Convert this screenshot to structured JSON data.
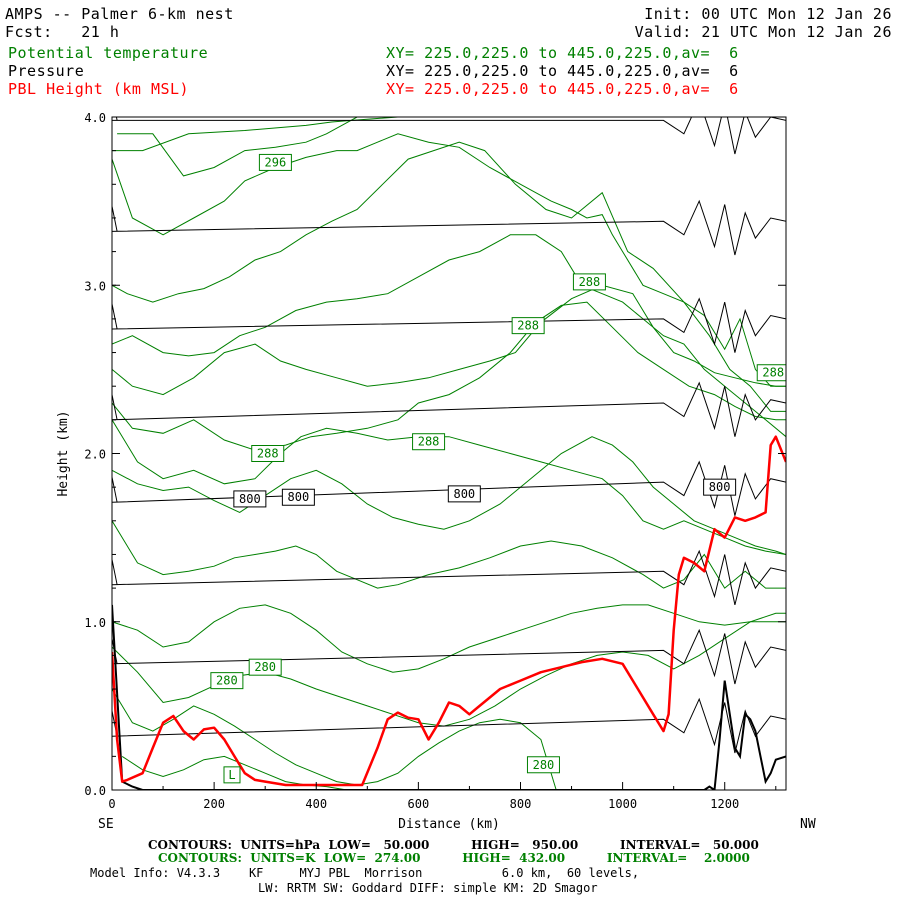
{
  "header": {
    "title": "AMPS -- Palmer 6-km nest",
    "fcst": "Fcst:   21 h",
    "init": "Init: 00 UTC Mon 12 Jan 26",
    "valid": "Valid: 21 UTC Mon 12 Jan 26",
    "fields": [
      {
        "name": "Potential temperature",
        "xy": "XY= 225.0,225.0 to 445.0,225.0,av=  6",
        "color": "#008000"
      },
      {
        "name": "Pressure",
        "xy": "XY= 225.0,225.0 to 445.0,225.0,av=  6",
        "color": "#000000"
      },
      {
        "name": "PBL Height (km MSL)",
        "xy": "XY= 225.0,225.0 to 445.0,225.0,av=  6",
        "color": "#ff0000"
      }
    ]
  },
  "chart_data": {
    "type": "line",
    "xlabel": "Distance (km)",
    "ylabel": "Height (km)",
    "xlim": [
      0,
      1320
    ],
    "ylim": [
      0,
      4.0
    ],
    "xticks": [
      0,
      200,
      400,
      600,
      800,
      1000,
      1200
    ],
    "yticks": [
      0.0,
      1.0,
      2.0,
      3.0,
      4.0
    ],
    "xtick_labels": [
      "0",
      "200",
      "400",
      "600",
      "800",
      "1000",
      "1200"
    ],
    "ytick_labels": [
      "0.0",
      "1.0",
      "2.0",
      "3.0",
      "4.0"
    ],
    "left_end_label": "SE",
    "right_end_label": "NW",
    "pbl_height": {
      "name": "PBL Height (km MSL)",
      "color": "#ff0000",
      "x": [
        0,
        10,
        20,
        30,
        60,
        80,
        100,
        120,
        140,
        160,
        180,
        200,
        220,
        240,
        260,
        280,
        300,
        340,
        400,
        460,
        490,
        520,
        540,
        560,
        580,
        600,
        620,
        640,
        660,
        680,
        700,
        720,
        760,
        800,
        840,
        880,
        920,
        960,
        1000,
        1030,
        1060,
        1080,
        1090,
        1100,
        1110,
        1120,
        1140,
        1160,
        1180,
        1200,
        1220,
        1240,
        1260,
        1280,
        1290,
        1300,
        1320
      ],
      "y": [
        0.82,
        0.3,
        0.05,
        0.06,
        0.1,
        0.25,
        0.4,
        0.44,
        0.35,
        0.3,
        0.36,
        0.37,
        0.3,
        0.2,
        0.1,
        0.06,
        0.05,
        0.03,
        0.03,
        0.03,
        0.03,
        0.25,
        0.42,
        0.46,
        0.43,
        0.42,
        0.3,
        0.4,
        0.52,
        0.5,
        0.45,
        0.5,
        0.6,
        0.65,
        0.7,
        0.73,
        0.76,
        0.78,
        0.75,
        0.6,
        0.45,
        0.35,
        0.45,
        0.95,
        1.28,
        1.38,
        1.35,
        1.3,
        1.55,
        1.5,
        1.62,
        1.6,
        1.62,
        1.65,
        2.05,
        2.1,
        1.95
      ]
    },
    "pressure_contours": {
      "name": "Pressure",
      "units": "hPa",
      "color": "#000000",
      "levels": [
        {
          "y": [
            3.98,
            3.98
          ]
        },
        {
          "y": [
            3.32,
            3.38
          ]
        },
        {
          "y": [
            2.74,
            2.8
          ]
        },
        {
          "y": [
            2.2,
            2.3
          ]
        },
        {
          "y": [
            1.71,
            1.83
          ]
        },
        {
          "y": [
            1.22,
            1.3
          ]
        },
        {
          "y": [
            0.75,
            0.83
          ]
        },
        {
          "y": [
            0.32,
            0.42
          ]
        }
      ],
      "labels": [
        {
          "text": "800",
          "x": 270,
          "y": 1.73
        },
        {
          "text": "800",
          "x": 365,
          "y": 1.74
        },
        {
          "text": "800",
          "x": 690,
          "y": 1.76
        },
        {
          "text": "800",
          "x": 1190,
          "y": 1.8
        }
      ]
    },
    "theta_contours": {
      "name": "Potential temperature",
      "units": "K",
      "color": "#008000",
      "lines": [
        {
          "x": [
            0,
            60,
            150,
            260,
            380,
            430,
            470,
            560,
            650,
            700,
            780,
            820
          ],
          "y": [
            3.8,
            3.8,
            3.9,
            3.92,
            3.95,
            3.97,
            3.98,
            4.0,
            4.0,
            4.0,
            4.0,
            4.0
          ]
        },
        {
          "x": [
            10,
            80,
            140,
            200,
            260,
            320,
            380,
            420,
            450,
            480,
            520,
            560,
            600,
            650,
            700,
            760,
            800
          ],
          "y": [
            3.9,
            3.9,
            3.65,
            3.7,
            3.8,
            3.82,
            3.85,
            3.9,
            3.95,
            4.0,
            4.0,
            4.0,
            4.0,
            4.0,
            4.0,
            4.0,
            4.0
          ]
        },
        {
          "x": [
            0,
            40,
            100,
            160,
            220,
            260,
            320,
            380,
            440,
            480,
            520,
            560,
            620,
            680,
            740,
            800,
            860,
            900,
            930,
            960,
            980,
            1000,
            1040,
            1080,
            1120,
            1160,
            1200,
            1230,
            1260,
            1290,
            1320
          ],
          "y": [
            3.75,
            3.4,
            3.3,
            3.4,
            3.5,
            3.62,
            3.7,
            3.76,
            3.8,
            3.8,
            3.85,
            3.9,
            3.85,
            3.82,
            3.7,
            3.6,
            3.5,
            3.45,
            3.4,
            3.42,
            3.3,
            3.2,
            3.0,
            2.95,
            2.9,
            2.82,
            2.62,
            2.8,
            2.5,
            2.4,
            2.4
          ]
        },
        {
          "x": [
            0,
            30,
            80,
            130,
            180,
            230,
            280,
            330,
            380,
            430,
            480,
            530,
            580,
            630,
            680,
            730,
            790,
            850,
            900,
            960,
            1010,
            1060,
            1120,
            1170,
            1210,
            1250,
            1290,
            1320
          ],
          "y": [
            3.0,
            2.95,
            2.9,
            2.95,
            2.98,
            3.05,
            3.15,
            3.2,
            3.3,
            3.38,
            3.45,
            3.6,
            3.75,
            3.8,
            3.85,
            3.8,
            3.6,
            3.45,
            3.4,
            3.55,
            3.2,
            3.1,
            2.9,
            2.7,
            2.5,
            2.4,
            2.25,
            2.25
          ]
        },
        {
          "x": [
            0,
            40,
            100,
            150,
            200,
            250,
            300,
            360,
            420,
            480,
            540,
            600,
            660,
            720,
            780,
            830,
            880,
            920,
            960,
            1000,
            1040,
            1080,
            1120,
            1160,
            1200,
            1240,
            1280,
            1320
          ],
          "y": [
            2.65,
            2.7,
            2.6,
            2.58,
            2.6,
            2.7,
            2.75,
            2.85,
            2.9,
            2.92,
            2.95,
            3.05,
            3.15,
            3.2,
            3.3,
            3.3,
            3.2,
            3.0,
            2.95,
            2.9,
            2.8,
            2.7,
            2.65,
            2.5,
            2.4,
            2.3,
            2.2,
            2.1
          ]
        },
        {
          "x": [
            0,
            40,
            100,
            160,
            220,
            280,
            330,
            380,
            440,
            500,
            560,
            620,
            680,
            740,
            790,
            840,
            900,
            960,
            1020,
            1060,
            1100,
            1140,
            1180,
            1220,
            1260,
            1300,
            1320
          ],
          "y": [
            2.5,
            2.4,
            2.35,
            2.45,
            2.6,
            2.65,
            2.55,
            2.5,
            2.45,
            2.4,
            2.42,
            2.45,
            2.5,
            2.55,
            2.6,
            2.78,
            2.92,
            3.0,
            2.95,
            2.75,
            2.6,
            2.55,
            2.48,
            2.45,
            2.42,
            2.4,
            2.4
          ]
        },
        {
          "x": [
            0,
            40,
            100,
            160,
            220,
            280,
            340,
            390,
            440,
            500,
            560,
            600,
            660,
            720,
            780,
            830,
            880,
            930,
            980,
            1030,
            1080,
            1130,
            1180,
            1220,
            1260,
            1300,
            1320
          ],
          "y": [
            2.3,
            2.15,
            2.12,
            2.2,
            2.08,
            2.02,
            2.05,
            2.1,
            2.12,
            2.15,
            2.2,
            2.3,
            2.35,
            2.45,
            2.6,
            2.78,
            2.88,
            2.9,
            2.75,
            2.6,
            2.5,
            2.4,
            2.35,
            2.28,
            2.22,
            2.2,
            2.2
          ]
        },
        {
          "x": [
            0,
            50,
            100,
            160,
            220,
            280,
            330,
            370,
            420,
            480,
            540,
            600,
            660,
            720,
            780,
            840,
            900,
            960,
            1000,
            1040,
            1080,
            1120,
            1160,
            1200,
            1240,
            1280,
            1320
          ],
          "y": [
            2.2,
            1.95,
            1.85,
            1.9,
            1.82,
            1.85,
            2.0,
            2.1,
            2.15,
            2.12,
            2.08,
            2.1,
            2.1,
            2.05,
            2.0,
            1.95,
            1.9,
            1.85,
            1.75,
            1.6,
            1.55,
            1.6,
            1.55,
            1.5,
            1.45,
            1.42,
            1.4
          ]
        },
        {
          "x": [
            0,
            50,
            100,
            150,
            200,
            250,
            300,
            350,
            400,
            450,
            500,
            550,
            600,
            650,
            700,
            760,
            820,
            880,
            940,
            980,
            1020,
            1060,
            1100,
            1140,
            1180,
            1220,
            1260,
            1300,
            1320
          ],
          "y": [
            1.9,
            1.82,
            1.78,
            1.8,
            1.72,
            1.65,
            1.75,
            1.85,
            1.9,
            1.82,
            1.7,
            1.62,
            1.58,
            1.55,
            1.6,
            1.7,
            1.85,
            2.0,
            2.1,
            2.05,
            1.95,
            1.8,
            1.7,
            1.6,
            1.55,
            1.5,
            1.45,
            1.42,
            1.4
          ]
        },
        {
          "x": [
            0,
            50,
            100,
            150,
            200,
            240,
            280,
            320,
            360,
            400,
            440,
            480,
            520,
            560,
            620,
            680,
            740,
            800,
            860,
            920,
            980,
            1040,
            1080,
            1120,
            1160,
            1200,
            1240,
            1280,
            1320
          ],
          "y": [
            1.6,
            1.35,
            1.28,
            1.3,
            1.33,
            1.38,
            1.4,
            1.42,
            1.45,
            1.4,
            1.3,
            1.25,
            1.2,
            1.22,
            1.28,
            1.32,
            1.38,
            1.45,
            1.48,
            1.45,
            1.38,
            1.28,
            1.2,
            1.25,
            1.4,
            1.2,
            1.3,
            1.2,
            1.2
          ]
        },
        {
          "x": [
            0,
            50,
            100,
            150,
            200,
            250,
            300,
            350,
            400,
            450,
            500,
            550,
            600,
            650,
            700,
            750,
            800,
            850,
            900,
            950,
            1000,
            1050,
            1100,
            1150,
            1200,
            1250,
            1300,
            1320
          ],
          "y": [
            1.0,
            0.95,
            0.85,
            0.88,
            1.0,
            1.08,
            1.1,
            1.05,
            0.95,
            0.82,
            0.75,
            0.7,
            0.72,
            0.78,
            0.85,
            0.9,
            0.95,
            1.0,
            1.05,
            1.08,
            1.1,
            1.1,
            1.05,
            1.0,
            0.98,
            1.0,
            1.0,
            1.0
          ]
        },
        {
          "x": [
            0,
            50,
            100,
            150,
            200,
            250,
            300,
            350,
            400,
            450,
            500,
            550,
            600,
            650,
            700,
            750,
            800,
            850,
            900,
            950,
            1000,
            1050,
            1100,
            1150,
            1200,
            1250,
            1300,
            1320
          ],
          "y": [
            0.85,
            0.7,
            0.52,
            0.55,
            0.62,
            0.68,
            0.7,
            0.66,
            0.6,
            0.55,
            0.5,
            0.45,
            0.4,
            0.38,
            0.42,
            0.5,
            0.6,
            0.68,
            0.75,
            0.8,
            0.82,
            0.8,
            0.72,
            0.8,
            0.9,
            1.0,
            1.05,
            1.05
          ]
        },
        {
          "x": [
            0,
            40,
            80,
            120,
            160,
            200,
            240,
            280,
            320,
            360,
            400,
            440,
            480,
            520,
            560,
            600,
            640,
            680,
            720,
            760,
            800,
            840,
            870
          ],
          "y": [
            0.6,
            0.4,
            0.35,
            0.42,
            0.5,
            0.45,
            0.38,
            0.3,
            0.22,
            0.15,
            0.1,
            0.05,
            0.03,
            0.05,
            0.1,
            0.2,
            0.28,
            0.35,
            0.4,
            0.42,
            0.4,
            0.3,
            0.0
          ]
        },
        {
          "x": [
            20,
            60,
            100,
            140,
            180,
            220,
            260,
            300,
            340,
            380,
            420,
            460
          ],
          "y": [
            0.2,
            0.12,
            0.08,
            0.12,
            0.18,
            0.2,
            0.15,
            0.1,
            0.05,
            0.03,
            0.02,
            0.0
          ]
        }
      ],
      "labels": [
        {
          "text": "296",
          "x": 320,
          "y": 3.73
        },
        {
          "text": "288",
          "x": 935,
          "y": 3.02
        },
        {
          "text": "288",
          "x": 815,
          "y": 2.76
        },
        {
          "text": "288",
          "x": 1295,
          "y": 2.48
        },
        {
          "text": "288",
          "x": 620,
          "y": 2.07
        },
        {
          "text": "288",
          "x": 305,
          "y": 2.0
        },
        {
          "text": "280",
          "x": 300,
          "y": 0.73
        },
        {
          "text": "280",
          "x": 225,
          "y": 0.65
        },
        {
          "text": "280",
          "x": 845,
          "y": 0.15
        },
        {
          "text": "L",
          "x": 235,
          "y": 0.09
        }
      ]
    },
    "terrain": {
      "color": "#000000",
      "x": [
        0,
        20,
        40,
        60,
        80,
        100,
        1160,
        1170,
        1180,
        1190,
        1200,
        1210,
        1220,
        1230,
        1240,
        1250,
        1260,
        1270,
        1280,
        1290,
        1300,
        1320
      ],
      "y": [
        1.1,
        0.05,
        0.02,
        0.0,
        0.0,
        0.0,
        0.0,
        0.02,
        0.0,
        0.3,
        0.65,
        0.45,
        0.25,
        0.2,
        0.45,
        0.42,
        0.35,
        0.2,
        0.05,
        0.1,
        0.18,
        0.2
      ]
    }
  },
  "footer": {
    "contours_pressure": "CONTOURS:  UNITS=hPa  LOW=   50.000          HIGH=   950.00          INTERVAL=   50.000",
    "contours_theta": "CONTOURS:  UNITS=K  LOW=  274.00          HIGH=  432.00          INTERVAL=    2.0000",
    "model_info": "Model Info: V4.3.3    KF     MYJ PBL  Morrison           6.0 km,  60 levels,",
    "physics": "LW: RRTM SW: Goddard DIFF: simple KM: 2D Smagor"
  }
}
